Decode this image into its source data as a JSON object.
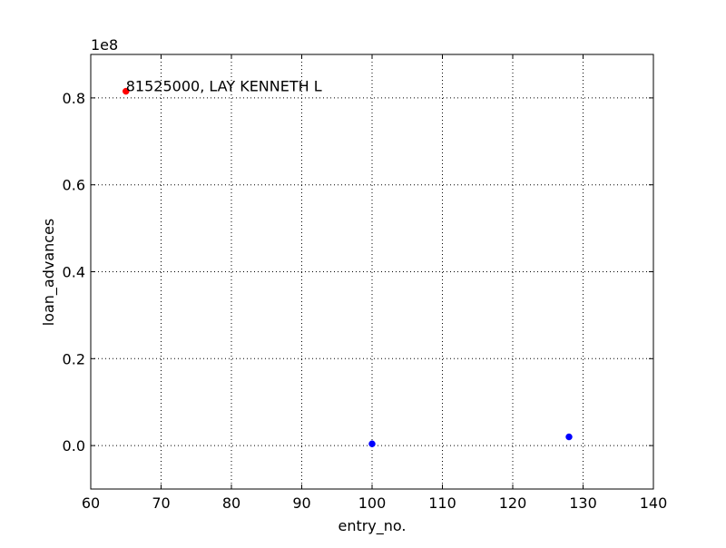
{
  "chart_data": {
    "type": "scatter",
    "title": "",
    "xlabel": "entry_no.",
    "ylabel": "loan_advances",
    "y_offset_label": "1e8",
    "xlim": [
      60,
      140
    ],
    "ylim": [
      -10000000,
      90000000
    ],
    "x_ticks": [
      60,
      70,
      80,
      90,
      100,
      110,
      120,
      130,
      140
    ],
    "x_tick_labels": [
      "60",
      "70",
      "80",
      "90",
      "100",
      "110",
      "120",
      "130",
      "140"
    ],
    "y_ticks": [
      0,
      20000000,
      40000000,
      60000000,
      80000000
    ],
    "y_tick_labels": [
      "0.0",
      "0.2",
      "0.4",
      "0.6",
      "0.8"
    ],
    "grid": true,
    "points": [
      {
        "x": 65,
        "y": 81525000,
        "color": "#ff0000"
      },
      {
        "x": 100,
        "y": 400000,
        "color": "#0000ff"
      },
      {
        "x": 128,
        "y": 2000000,
        "color": "#0000ff"
      }
    ],
    "annotations": [
      {
        "x": 65,
        "y": 81525000,
        "text": "81525000, LAY KENNETH L"
      }
    ]
  }
}
